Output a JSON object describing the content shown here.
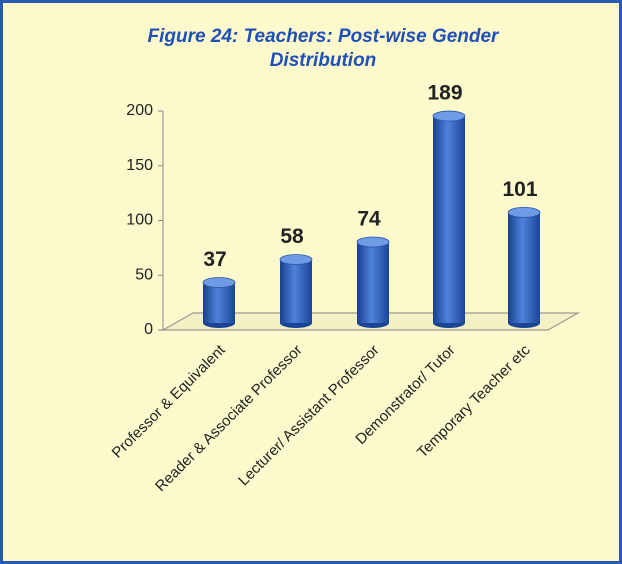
{
  "chart_data": {
    "type": "bar",
    "title": "Figure 24: Teachers: Post-wise Gender Distribution",
    "categories": [
      "Professor & Equivalent",
      "Reader & Associate Professor",
      "Lecturer/ Assistant Professor",
      "Demonstrator/ Tutor",
      "Temporary Teacher etc"
    ],
    "values": [
      37,
      58,
      74,
      189,
      101
    ],
    "color": "#2f62c6",
    "ylim": [
      0,
      200
    ],
    "yticks": [
      0,
      50,
      100,
      150,
      200
    ]
  }
}
